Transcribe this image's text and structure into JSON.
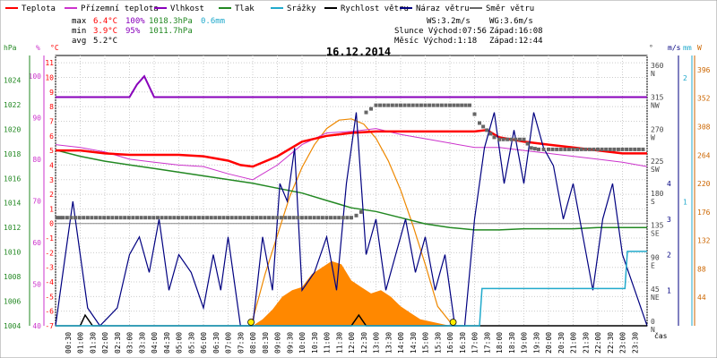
{
  "chart_data": {
    "type": "line",
    "title": "16.12.2014",
    "grid": true,
    "legend_position": "top",
    "legend": [
      {
        "label": "Teplota",
        "color": "#ff0000"
      },
      {
        "label": "Přízemní teplota",
        "color": "#cc33cc"
      },
      {
        "label": "Vlhkost",
        "color": "#8800bb"
      },
      {
        "label": "Tlak",
        "color": "#228822"
      },
      {
        "label": "Srážky",
        "color": "#22aacc"
      },
      {
        "label": "Rychlost větru",
        "color": "#000000"
      },
      {
        "label": "Náraz větru",
        "color": "#000080"
      },
      {
        "label": "Směr větru",
        "color": "#666666"
      }
    ],
    "summary": {
      "max_label": "max",
      "max_temp": "6.4°C",
      "max_hum": "100%",
      "max_press": "1018.3hPa",
      "max_rain": "0.6mm",
      "min_label": "min",
      "min_temp": "3.9°C",
      "min_hum": "95%",
      "min_press": "1011.7hPa",
      "avg_label": "avg",
      "avg_temp": "5.2°C",
      "ws": "WS:3.2m/s",
      "wg": "WG:3.6m/s",
      "sun": "Slunce Východ:07:56",
      "sun_set": "Západ:16:08",
      "moon": "Měsíc Východ:1:18",
      "moon_set": "Západ:12:44"
    },
    "axes": {
      "hpa": {
        "unit": "hPa",
        "ticks": [
          1004,
          1006,
          1008,
          1010,
          1012,
          1014,
          1016,
          1018,
          1020,
          1022,
          1024
        ],
        "range": [
          1004,
          1026
        ]
      },
      "pct": {
        "unit": "%",
        "ticks": [
          40,
          50,
          60,
          70,
          80,
          90,
          100
        ],
        "range": [
          40,
          105
        ]
      },
      "temp": {
        "unit": "°C",
        "ticks": [
          -7,
          -6,
          -5,
          -4,
          -3,
          -2,
          -1,
          0,
          1,
          2,
          3,
          4,
          5,
          6,
          7,
          8,
          9,
          10,
          11
        ],
        "range": [
          -7,
          11.5
        ]
      },
      "dir": {
        "unit": "°",
        "ticks": [
          {
            "v": 0,
            "d": "N"
          },
          {
            "v": 45,
            "d": "NE"
          },
          {
            "v": 90,
            "d": "E"
          },
          {
            "v": 135,
            "d": "SE"
          },
          {
            "v": 180,
            "d": "S"
          },
          {
            "v": 225,
            "d": "SW"
          },
          {
            "v": 270,
            "d": "W"
          },
          {
            "v": 315,
            "d": "NW"
          },
          {
            "v": 360,
            "d": "N"
          }
        ],
        "range": [
          0,
          380
        ]
      },
      "wind": {
        "unit": "m/s",
        "ticks": [
          1,
          2,
          3,
          4
        ],
        "range": [
          0,
          7.6
        ]
      },
      "rain": {
        "unit": "mm",
        "ticks": [
          1,
          2
        ],
        "range": [
          0,
          2.18
        ]
      },
      "solar": {
        "unit": "W",
        "ticks": [
          44,
          88,
          132,
          176,
          220,
          264,
          308,
          352,
          396
        ],
        "range": [
          0,
          418
        ]
      },
      "x": {
        "label": "čas",
        "ticks": [
          "00:30",
          "01:00",
          "01:30",
          "02:00",
          "02:30",
          "03:00",
          "03:30",
          "04:00",
          "04:30",
          "05:00",
          "05:30",
          "06:00",
          "06:30",
          "07:00",
          "07:30",
          "08:00",
          "08:30",
          "09:00",
          "09:30",
          "10:00",
          "10:30",
          "11:00",
          "11:30",
          "12:00",
          "12:30",
          "13:00",
          "13:30",
          "14:00",
          "14:30",
          "15:00",
          "15:30",
          "16:00",
          "16:30",
          "17:00",
          "17:30",
          "18:00",
          "18:30",
          "19:00",
          "19:30",
          "20:00",
          "20:30",
          "21:00",
          "21:30",
          "22:00",
          "22:30",
          "23:00",
          "23:30"
        ]
      }
    },
    "series": {
      "temperature": {
        "unit": "°C",
        "points": [
          [
            0,
            5.0
          ],
          [
            1,
            5.0
          ],
          [
            2,
            4.8
          ],
          [
            3,
            4.7
          ],
          [
            4,
            4.7
          ],
          [
            5,
            4.7
          ],
          [
            6,
            4.6
          ],
          [
            7,
            4.3
          ],
          [
            7.5,
            4.0
          ],
          [
            8,
            3.9
          ],
          [
            9,
            4.6
          ],
          [
            10,
            5.6
          ],
          [
            11,
            6.0
          ],
          [
            12,
            6.2
          ],
          [
            13,
            6.3
          ],
          [
            14,
            6.3
          ],
          [
            15,
            6.3
          ],
          [
            16,
            6.3
          ],
          [
            17,
            6.3
          ],
          [
            17.5,
            6.4
          ],
          [
            18,
            5.9
          ],
          [
            19,
            5.6
          ],
          [
            20,
            5.4
          ],
          [
            21,
            5.2
          ],
          [
            22,
            5.0
          ],
          [
            23,
            4.8
          ],
          [
            24,
            4.8
          ]
        ]
      },
      "ground_temperature": {
        "unit": "°C",
        "points": [
          [
            0,
            5.4
          ],
          [
            1,
            5.2
          ],
          [
            2,
            4.9
          ],
          [
            3,
            4.4
          ],
          [
            4,
            4.2
          ],
          [
            5,
            4.0
          ],
          [
            6,
            3.9
          ],
          [
            7,
            3.4
          ],
          [
            8,
            3.0
          ],
          [
            9,
            4.0
          ],
          [
            10,
            5.4
          ],
          [
            11,
            6.2
          ],
          [
            12,
            6.3
          ],
          [
            13,
            6.5
          ],
          [
            14,
            6.1
          ],
          [
            15,
            5.8
          ],
          [
            16,
            5.5
          ],
          [
            17,
            5.2
          ],
          [
            18,
            5.2
          ],
          [
            19,
            5.0
          ],
          [
            20,
            4.8
          ],
          [
            21,
            4.6
          ],
          [
            22,
            4.4
          ],
          [
            23,
            4.2
          ],
          [
            24,
            3.9
          ]
        ]
      },
      "humidity": {
        "unit": "%",
        "points": [
          [
            0,
            95
          ],
          [
            3,
            95
          ],
          [
            3.3,
            98
          ],
          [
            3.6,
            100
          ],
          [
            4,
            95
          ],
          [
            24,
            95
          ]
        ]
      },
      "pressure": {
        "unit": "hPa",
        "points": [
          [
            0,
            1018.3
          ],
          [
            1,
            1017.8
          ],
          [
            2,
            1017.4
          ],
          [
            3,
            1017.1
          ],
          [
            4,
            1016.8
          ],
          [
            5,
            1016.5
          ],
          [
            6,
            1016.2
          ],
          [
            7,
            1015.9
          ],
          [
            8,
            1015.6
          ],
          [
            9,
            1015.2
          ],
          [
            10,
            1014.8
          ],
          [
            11,
            1014.2
          ],
          [
            12,
            1013.6
          ],
          [
            13,
            1013.3
          ],
          [
            14,
            1012.8
          ],
          [
            15,
            1012.3
          ],
          [
            16,
            1012.0
          ],
          [
            17,
            1011.8
          ],
          [
            18,
            1011.8
          ],
          [
            19,
            1011.9
          ],
          [
            20,
            1011.9
          ],
          [
            21,
            1011.9
          ],
          [
            22,
            1012.0
          ],
          [
            23,
            1012.0
          ],
          [
            24,
            1012.0
          ]
        ]
      },
      "wind_direction": {
        "unit": "°",
        "points": [
          [
            0.05,
            152
          ],
          [
            0.3,
            152
          ],
          [
            12,
            152
          ],
          [
            12.2,
            155
          ],
          [
            12.4,
            160
          ],
          [
            12.6,
            300
          ],
          [
            12.8,
            305
          ],
          [
            13,
            310
          ],
          [
            14,
            310
          ],
          [
            15,
            310
          ],
          [
            16,
            310
          ],
          [
            16.8,
            310
          ],
          [
            17.2,
            285
          ],
          [
            17.5,
            275
          ],
          [
            17.8,
            265
          ],
          [
            18,
            262
          ],
          [
            19,
            262
          ],
          [
            19.3,
            250
          ],
          [
            19.6,
            248
          ],
          [
            20,
            248
          ],
          [
            22,
            248
          ],
          [
            24,
            248
          ]
        ]
      },
      "wind_speed": {
        "unit": "m/s",
        "points": [
          [
            0,
            0
          ],
          [
            1,
            0
          ],
          [
            1.2,
            0.3
          ],
          [
            1.5,
            0
          ],
          [
            7,
            0
          ],
          [
            8,
            0
          ],
          [
            12,
            0
          ],
          [
            12.3,
            0.3
          ],
          [
            12.6,
            0
          ],
          [
            16.5,
            0
          ],
          [
            17,
            0
          ],
          [
            24,
            0
          ]
        ]
      },
      "wind_gust": {
        "unit": "m/s",
        "points": [
          [
            0,
            0
          ],
          [
            0.4,
            2
          ],
          [
            0.7,
            3.5
          ],
          [
            1,
            2
          ],
          [
            1.3,
            0.5
          ],
          [
            1.8,
            0
          ],
          [
            2.5,
            0.5
          ],
          [
            3,
            2
          ],
          [
            3.4,
            2.5
          ],
          [
            3.8,
            1.5
          ],
          [
            4.2,
            3
          ],
          [
            4.6,
            1
          ],
          [
            5,
            2
          ],
          [
            5.5,
            1.5
          ],
          [
            6,
            0.5
          ],
          [
            6.4,
            2
          ],
          [
            6.7,
            1
          ],
          [
            7,
            2.5
          ],
          [
            7.5,
            0
          ],
          [
            8,
            0
          ],
          [
            8.4,
            2.5
          ],
          [
            8.8,
            1
          ],
          [
            9.1,
            4
          ],
          [
            9.4,
            3.5
          ],
          [
            9.7,
            5
          ],
          [
            10,
            1
          ],
          [
            10.5,
            1.5
          ],
          [
            11,
            2.5
          ],
          [
            11.4,
            1
          ],
          [
            11.8,
            4
          ],
          [
            12.2,
            6
          ],
          [
            12.6,
            2
          ],
          [
            13,
            3
          ],
          [
            13.4,
            1
          ],
          [
            13.8,
            2
          ],
          [
            14.2,
            3
          ],
          [
            14.6,
            1.5
          ],
          [
            15,
            2.5
          ],
          [
            15.4,
            1
          ],
          [
            15.8,
            2
          ],
          [
            16.2,
            0
          ],
          [
            16.6,
            0
          ],
          [
            17,
            3
          ],
          [
            17.4,
            5
          ],
          [
            17.8,
            6
          ],
          [
            18.2,
            4
          ],
          [
            18.6,
            5.5
          ],
          [
            19,
            4
          ],
          [
            19.4,
            6
          ],
          [
            19.8,
            5
          ],
          [
            20.2,
            4.5
          ],
          [
            20.6,
            3
          ],
          [
            21,
            4
          ],
          [
            21.4,
            2.5
          ],
          [
            21.8,
            1
          ],
          [
            22.2,
            3
          ],
          [
            22.6,
            4
          ],
          [
            23,
            2
          ],
          [
            23.5,
            1
          ],
          [
            24,
            0
          ]
        ]
      },
      "rain": {
        "unit": "mm",
        "points": [
          [
            0,
            0
          ],
          [
            17.2,
            0
          ],
          [
            17.3,
            0.3
          ],
          [
            23.1,
            0.3
          ],
          [
            23.2,
            0.6
          ],
          [
            24,
            0.6
          ]
        ]
      },
      "solar_radiation": {
        "unit": "W",
        "points": [
          [
            0,
            0
          ],
          [
            8,
            0
          ],
          [
            8.4,
            10
          ],
          [
            8.8,
            25
          ],
          [
            9.2,
            45
          ],
          [
            9.6,
            55
          ],
          [
            10,
            60
          ],
          [
            10.4,
            80
          ],
          [
            10.8,
            90
          ],
          [
            11.2,
            100
          ],
          [
            11.6,
            95
          ],
          [
            12,
            70
          ],
          [
            12.4,
            60
          ],
          [
            12.8,
            50
          ],
          [
            13.2,
            55
          ],
          [
            13.6,
            45
          ],
          [
            14,
            30
          ],
          [
            14.4,
            20
          ],
          [
            14.8,
            10
          ],
          [
            15.4,
            5
          ],
          [
            16,
            0
          ],
          [
            24,
            0
          ]
        ]
      },
      "sun_curve": {
        "unit": "W",
        "points": [
          [
            7.93,
            0
          ],
          [
            8.5,
            80
          ],
          [
            9,
            140
          ],
          [
            9.5,
            200
          ],
          [
            10,
            245
          ],
          [
            10.5,
            280
          ],
          [
            11,
            305
          ],
          [
            11.5,
            318
          ],
          [
            12,
            320
          ],
          [
            12.5,
            312
          ],
          [
            13,
            290
          ],
          [
            13.5,
            255
          ],
          [
            14,
            210
          ],
          [
            14.5,
            155
          ],
          [
            15,
            95
          ],
          [
            15.5,
            30
          ],
          [
            16.13,
            0
          ]
        ]
      },
      "sun_markers": [
        {
          "hour": 7.93,
          "label": "sunrise"
        },
        {
          "hour": 16.13,
          "label": "sunset"
        }
      ]
    }
  }
}
